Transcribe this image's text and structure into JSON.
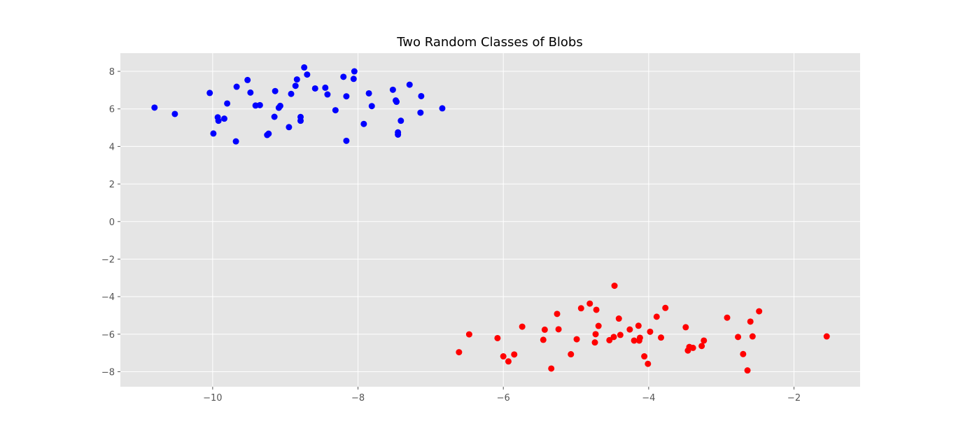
{
  "chart_data": {
    "type": "scatter",
    "title": "Two Random Classes of Blobs",
    "xlabel": "",
    "ylabel": "",
    "xlim": [
      -11.27,
      -1.09
    ],
    "ylim": [
      -8.8,
      8.97
    ],
    "xticks": [
      -10,
      -8,
      -6,
      -4,
      -2
    ],
    "yticks": [
      -8,
      -6,
      -4,
      -2,
      0,
      2,
      4,
      6,
      8
    ],
    "xtick_labels": [
      "−10",
      "−8",
      "−6",
      "−4",
      "−2"
    ],
    "ytick_labels": [
      "−8",
      "−6",
      "−4",
      "−2",
      "0",
      "2",
      "4",
      "6",
      "8"
    ],
    "grid": true,
    "colors": {
      "plot_background": "#e5e5e5",
      "grid": "#ffffff",
      "class_a": "#0000ff",
      "class_b": "#ff0000"
    },
    "series": [
      {
        "color": "#0000ff",
        "points": [
          [
            -10.8,
            6.07
          ],
          [
            -10.52,
            5.73
          ],
          [
            -10.04,
            6.85
          ],
          [
            -9.99,
            4.69
          ],
          [
            -9.93,
            5.55
          ],
          [
            -9.92,
            5.37
          ],
          [
            -9.84,
            5.48
          ],
          [
            -9.8,
            6.29
          ],
          [
            -9.68,
            4.27
          ],
          [
            -9.67,
            7.18
          ],
          [
            -9.52,
            7.54
          ],
          [
            -9.48,
            6.87
          ],
          [
            -9.41,
            6.18
          ],
          [
            -9.35,
            6.2
          ],
          [
            -9.25,
            4.61
          ],
          [
            -9.23,
            4.68
          ],
          [
            -9.15,
            5.58
          ],
          [
            -9.14,
            6.95
          ],
          [
            -9.09,
            6.06
          ],
          [
            -9.07,
            6.16
          ],
          [
            -8.95,
            5.03
          ],
          [
            -8.92,
            6.8
          ],
          [
            -8.86,
            7.23
          ],
          [
            -8.84,
            7.57
          ],
          [
            -8.79,
            5.57
          ],
          [
            -8.79,
            5.37
          ],
          [
            -8.74,
            8.21
          ],
          [
            -8.7,
            7.83
          ],
          [
            -8.59,
            7.09
          ],
          [
            -8.45,
            7.13
          ],
          [
            -8.42,
            6.77
          ],
          [
            -8.31,
            5.93
          ],
          [
            -8.2,
            7.71
          ],
          [
            -8.16,
            6.67
          ],
          [
            -8.16,
            4.3
          ],
          [
            -8.06,
            7.6
          ],
          [
            -8.05,
            8.0
          ],
          [
            -7.92,
            5.2
          ],
          [
            -7.85,
            6.83
          ],
          [
            -7.81,
            6.15
          ],
          [
            -7.52,
            7.02
          ],
          [
            -7.48,
            6.45
          ],
          [
            -7.47,
            6.38
          ],
          [
            -7.45,
            4.75
          ],
          [
            -7.45,
            4.63
          ],
          [
            -7.41,
            5.37
          ],
          [
            -7.29,
            7.29
          ],
          [
            -7.14,
            5.8
          ],
          [
            -7.13,
            6.68
          ],
          [
            -6.84,
            6.03
          ]
        ]
      },
      {
        "color": "#ff0000",
        "points": [
          [
            -6.61,
            -6.96
          ],
          [
            -6.47,
            -6.01
          ],
          [
            -6.08,
            -6.21
          ],
          [
            -6.0,
            -7.18
          ],
          [
            -5.93,
            -7.45
          ],
          [
            -5.85,
            -7.08
          ],
          [
            -5.74,
            -5.6
          ],
          [
            -5.45,
            -6.3
          ],
          [
            -5.43,
            -5.76
          ],
          [
            -5.34,
            -7.83
          ],
          [
            -5.26,
            -4.92
          ],
          [
            -5.24,
            -5.74
          ],
          [
            -5.07,
            -7.07
          ],
          [
            -4.99,
            -6.27
          ],
          [
            -4.93,
            -4.62
          ],
          [
            -4.81,
            -4.37
          ],
          [
            -4.74,
            -6.44
          ],
          [
            -4.73,
            -6.0
          ],
          [
            -4.72,
            -4.7
          ],
          [
            -4.69,
            -5.56
          ],
          [
            -4.54,
            -6.32
          ],
          [
            -4.48,
            -6.15
          ],
          [
            -4.47,
            -3.42
          ],
          [
            -4.41,
            -5.17
          ],
          [
            -4.39,
            -6.04
          ],
          [
            -4.26,
            -5.75
          ],
          [
            -4.2,
            -6.34
          ],
          [
            -4.14,
            -5.55
          ],
          [
            -4.13,
            -6.34
          ],
          [
            -4.12,
            -6.19
          ],
          [
            -4.06,
            -7.18
          ],
          [
            -4.01,
            -7.58
          ],
          [
            -3.98,
            -5.87
          ],
          [
            -3.89,
            -5.07
          ],
          [
            -3.83,
            -6.18
          ],
          [
            -3.77,
            -4.6
          ],
          [
            -3.49,
            -5.63
          ],
          [
            -3.46,
            -6.87
          ],
          [
            -3.44,
            -6.68
          ],
          [
            -3.39,
            -6.73
          ],
          [
            -3.27,
            -6.63
          ],
          [
            -3.24,
            -6.34
          ],
          [
            -2.92,
            -5.12
          ],
          [
            -2.77,
            -6.15
          ],
          [
            -2.7,
            -7.06
          ],
          [
            -2.64,
            -7.93
          ],
          [
            -2.6,
            -5.33
          ],
          [
            -2.57,
            -6.12
          ],
          [
            -2.48,
            -4.78
          ],
          [
            -1.55,
            -6.12
          ]
        ]
      }
    ]
  }
}
